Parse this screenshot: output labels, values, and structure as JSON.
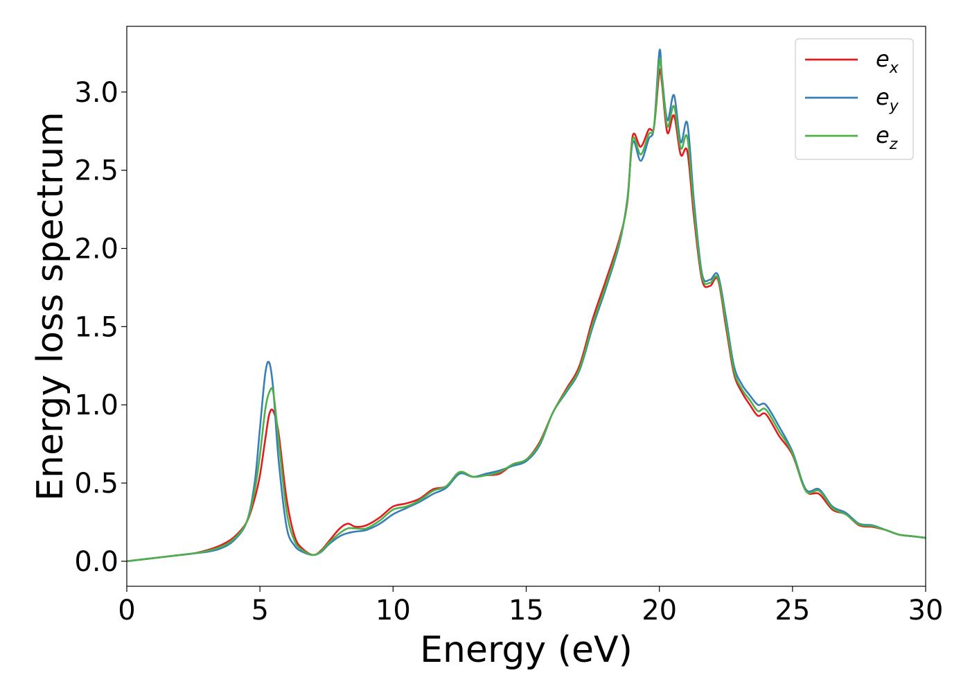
{
  "chart_data": {
    "type": "line",
    "title": "",
    "xlabel": "Energy (eV)",
    "ylabel": "Energy loss spectrum",
    "xlim": [
      0,
      30
    ],
    "ylim": [
      -0.16,
      3.42
    ],
    "xticks": [
      0,
      5,
      10,
      15,
      20,
      25,
      30
    ],
    "xtick_labels": [
      "0",
      "5",
      "10",
      "15",
      "20",
      "25",
      "30"
    ],
    "yticks": [
      0.0,
      0.5,
      1.0,
      1.5,
      2.0,
      2.5,
      3.0
    ],
    "ytick_labels": [
      "0.0",
      "0.5",
      "1.0",
      "1.5",
      "2.0",
      "2.5",
      "3.0"
    ],
    "grid": false,
    "legend": "top-right",
    "x": [
      0,
      0.5,
      1,
      1.5,
      2,
      2.5,
      3,
      3.5,
      4,
      4.5,
      4.8,
      5,
      5.2,
      5.35,
      5.5,
      5.7,
      6,
      6.3,
      6.6,
      7,
      7.3,
      7.6,
      8,
      8.3,
      8.6,
      9,
      9.5,
      10,
      10.5,
      11,
      11.5,
      12,
      12.5,
      13,
      13.5,
      14,
      14.5,
      15,
      15.5,
      16,
      16.5,
      17,
      17.5,
      18,
      18.5,
      18.8,
      19,
      19.3,
      19.6,
      19.8,
      20,
      20.1,
      20.3,
      20.55,
      20.8,
      21.05,
      21.3,
      21.6,
      21.9,
      22.2,
      22.5,
      22.8,
      23.1,
      23.4,
      23.7,
      24,
      24.5,
      25,
      25.5,
      26,
      26.5,
      27,
      27.5,
      28,
      28.5,
      29,
      29.5,
      30
    ],
    "series": [
      {
        "name": "e_x",
        "label_main": "e",
        "label_sub": "x",
        "color": "#e41a1c",
        "values": [
          0.0,
          0.01,
          0.02,
          0.03,
          0.04,
          0.05,
          0.07,
          0.1,
          0.15,
          0.25,
          0.4,
          0.55,
          0.78,
          0.94,
          0.96,
          0.82,
          0.4,
          0.16,
          0.08,
          0.04,
          0.07,
          0.13,
          0.21,
          0.24,
          0.22,
          0.23,
          0.28,
          0.35,
          0.37,
          0.4,
          0.46,
          0.48,
          0.57,
          0.54,
          0.55,
          0.56,
          0.62,
          0.65,
          0.76,
          0.95,
          1.1,
          1.25,
          1.55,
          1.8,
          2.06,
          2.3,
          2.72,
          2.65,
          2.76,
          2.78,
          3.13,
          3.05,
          2.74,
          2.85,
          2.6,
          2.62,
          2.2,
          1.8,
          1.76,
          1.8,
          1.5,
          1.2,
          1.08,
          1.0,
          0.93,
          0.94,
          0.8,
          0.68,
          0.45,
          0.43,
          0.33,
          0.3,
          0.23,
          0.22,
          0.2,
          0.17,
          0.16,
          0.15
        ]
      },
      {
        "name": "e_y",
        "label_main": "e",
        "label_sub": "y",
        "color": "#377eb8",
        "values": [
          0.0,
          0.01,
          0.02,
          0.03,
          0.04,
          0.05,
          0.06,
          0.08,
          0.13,
          0.25,
          0.5,
          0.85,
          1.2,
          1.27,
          1.1,
          0.65,
          0.22,
          0.1,
          0.06,
          0.04,
          0.06,
          0.11,
          0.16,
          0.18,
          0.19,
          0.2,
          0.24,
          0.3,
          0.34,
          0.38,
          0.43,
          0.47,
          0.56,
          0.54,
          0.56,
          0.58,
          0.61,
          0.64,
          0.74,
          0.95,
          1.08,
          1.22,
          1.5,
          1.75,
          2.03,
          2.32,
          2.68,
          2.56,
          2.7,
          2.78,
          3.26,
          3.1,
          2.82,
          2.98,
          2.68,
          2.8,
          2.3,
          1.84,
          1.8,
          1.83,
          1.56,
          1.25,
          1.13,
          1.06,
          1.0,
          1.0,
          0.86,
          0.7,
          0.46,
          0.46,
          0.35,
          0.31,
          0.24,
          0.23,
          0.2,
          0.17,
          0.16,
          0.15
        ]
      },
      {
        "name": "e_z",
        "label_main": "e",
        "label_sub": "z",
        "color": "#4daf4a",
        "values": [
          0.0,
          0.01,
          0.02,
          0.03,
          0.04,
          0.05,
          0.065,
          0.09,
          0.14,
          0.25,
          0.45,
          0.68,
          0.97,
          1.08,
          1.08,
          0.78,
          0.32,
          0.13,
          0.07,
          0.04,
          0.065,
          0.12,
          0.18,
          0.21,
          0.21,
          0.21,
          0.26,
          0.33,
          0.35,
          0.39,
          0.45,
          0.48,
          0.57,
          0.54,
          0.55,
          0.57,
          0.62,
          0.65,
          0.75,
          0.95,
          1.09,
          1.23,
          1.52,
          1.77,
          2.04,
          2.31,
          2.7,
          2.6,
          2.73,
          2.78,
          3.2,
          3.08,
          2.78,
          2.91,
          2.64,
          2.71,
          2.25,
          1.82,
          1.78,
          1.81,
          1.53,
          1.22,
          1.1,
          1.03,
          0.96,
          0.97,
          0.83,
          0.69,
          0.45,
          0.45,
          0.34,
          0.3,
          0.235,
          0.225,
          0.2,
          0.17,
          0.16,
          0.15
        ]
      }
    ]
  }
}
